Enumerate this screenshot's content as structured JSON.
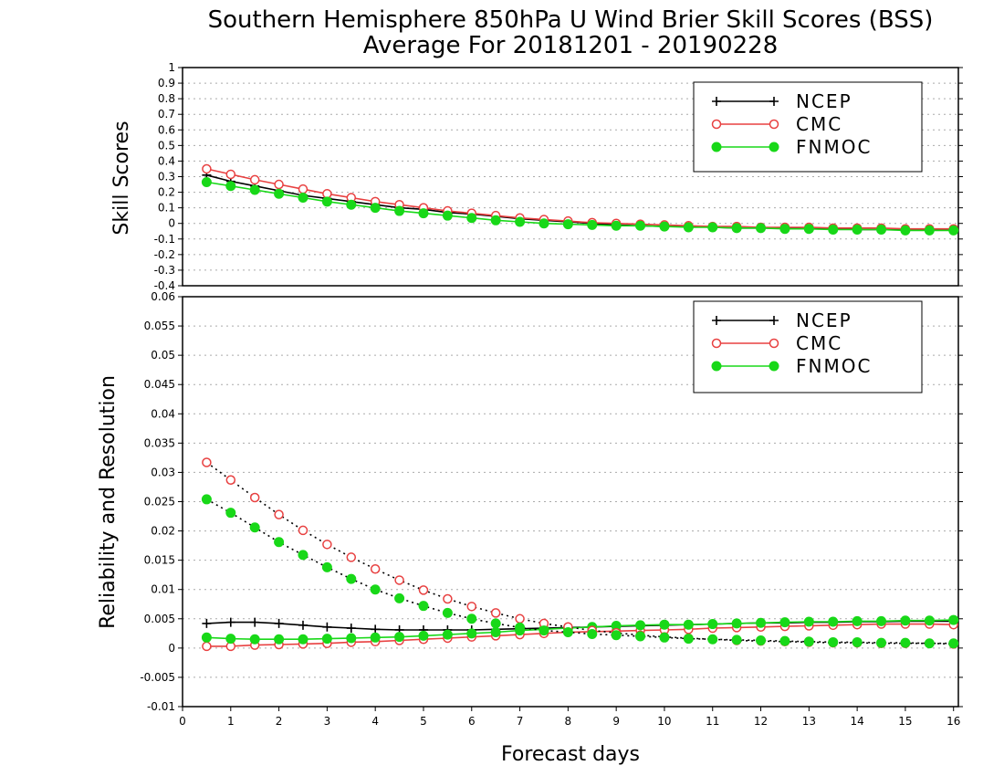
{
  "title_line1": "Southern Hemisphere 850hPa U Wind Brier Skill Scores (BSS)",
  "title_line2": "Average For 20181201 - 20190228",
  "xlabel": "Forecast days",
  "colors": {
    "NCEP": "#000000",
    "CMC": "#e84040",
    "FNMOC": "#18d818",
    "grid": "#aaaaaa"
  },
  "chart_data": [
    {
      "type": "line",
      "ylabel": "Skill Scores",
      "ylim": [
        -0.4,
        1
      ],
      "yticks": [
        -0.4,
        -0.3,
        -0.2,
        -0.1,
        0,
        0.1,
        0.2,
        0.3,
        0.4,
        0.5,
        0.6,
        0.7,
        0.8,
        0.9,
        1
      ],
      "ytick_labels": [
        "-0.4",
        "-0.3",
        "-0.2",
        "-0.1",
        "0",
        "0.1",
        "0.2",
        "0.3",
        "0.4",
        "0.5",
        "0.6",
        "0.7",
        "0.8",
        "0.9",
        "1"
      ],
      "xlim": [
        0,
        16.1
      ],
      "grid": true,
      "legend_position": "top-right",
      "x": [
        0.5,
        1,
        1.5,
        2,
        2.5,
        3,
        3.5,
        4,
        4.5,
        5,
        5.5,
        6,
        6.5,
        7,
        7.5,
        8,
        8.5,
        9,
        9.5,
        10,
        10.5,
        11,
        11.5,
        12,
        12.5,
        13,
        13.5,
        14,
        14.5,
        15,
        15.5,
        16
      ],
      "series": [
        {
          "name": "NCEP",
          "marker": "plus",
          "values": [
            0.31,
            0.27,
            0.24,
            0.21,
            0.18,
            0.16,
            0.14,
            0.12,
            0.1,
            0.09,
            0.07,
            0.06,
            0.045,
            0.03,
            0.02,
            0.01,
            0.0,
            -0.01,
            -0.015,
            -0.02,
            -0.02,
            -0.025,
            -0.03,
            -0.03,
            -0.03,
            -0.035,
            -0.035,
            -0.04,
            -0.04,
            -0.04,
            -0.04,
            -0.04
          ]
        },
        {
          "name": "CMC",
          "marker": "open-circle",
          "values": [
            0.35,
            0.315,
            0.28,
            0.25,
            0.22,
            0.19,
            0.165,
            0.14,
            0.12,
            0.1,
            0.08,
            0.065,
            0.05,
            0.035,
            0.025,
            0.015,
            0.005,
            0.0,
            -0.005,
            -0.01,
            -0.015,
            -0.02,
            -0.02,
            -0.025,
            -0.025,
            -0.025,
            -0.03,
            -0.03,
            -0.03,
            -0.035,
            -0.035,
            -0.035
          ]
        },
        {
          "name": "FNMOC",
          "marker": "filled-circle",
          "values": [
            0.265,
            0.24,
            0.215,
            0.19,
            0.165,
            0.14,
            0.12,
            0.1,
            0.08,
            0.065,
            0.05,
            0.035,
            0.02,
            0.01,
            0.0,
            -0.005,
            -0.01,
            -0.015,
            -0.015,
            -0.02,
            -0.025,
            -0.025,
            -0.03,
            -0.03,
            -0.035,
            -0.035,
            -0.04,
            -0.04,
            -0.04,
            -0.045,
            -0.045,
            -0.045
          ]
        }
      ]
    },
    {
      "type": "line",
      "ylabel": "Reliability and Resolution",
      "ylim": [
        -0.01,
        0.06
      ],
      "yticks": [
        -0.01,
        -0.005,
        0,
        0.005,
        0.01,
        0.015,
        0.02,
        0.025,
        0.03,
        0.035,
        0.04,
        0.045,
        0.05,
        0.055,
        0.06
      ],
      "ytick_labels": [
        "-0.01",
        "-0.005",
        "0",
        "0.005",
        "0.01",
        "0.015",
        "0.02",
        "0.025",
        "0.03",
        "0.035",
        "0.04",
        "0.045",
        "0.05",
        "0.055",
        "0.06"
      ],
      "xlim": [
        0,
        16.1
      ],
      "xticks": [
        0,
        1,
        2,
        3,
        4,
        5,
        6,
        7,
        8,
        9,
        10,
        11,
        12,
        13,
        14,
        15,
        16
      ],
      "xtick_labels": [
        "0",
        "1",
        "2",
        "3",
        "4",
        "5",
        "6",
        "7",
        "8",
        "9",
        "10",
        "11",
        "12",
        "13",
        "14",
        "15",
        "16"
      ],
      "grid": true,
      "legend_position": "top-right",
      "x": [
        0.5,
        1,
        1.5,
        2,
        2.5,
        3,
        3.5,
        4,
        4.5,
        5,
        5.5,
        6,
        6.5,
        7,
        7.5,
        8,
        8.5,
        9,
        9.5,
        10,
        10.5,
        11,
        11.5,
        12,
        12.5,
        13,
        13.5,
        14,
        14.5,
        15,
        15.5,
        16
      ],
      "series": [
        {
          "name": "NCEP",
          "marker": "plus",
          "line": "solid",
          "values": [
            0.0042,
            0.0044,
            0.0044,
            0.0042,
            0.0039,
            0.0036,
            0.0034,
            0.0032,
            0.0031,
            0.0031,
            0.0031,
            0.0031,
            0.0032,
            0.0033,
            0.0034,
            0.0035,
            0.0036,
            0.0037,
            0.0038,
            0.0039,
            0.004,
            0.0041,
            0.0042,
            0.0043,
            0.0043,
            0.0044,
            0.0044,
            0.0045,
            0.0045,
            0.0046,
            0.0046,
            0.0046
          ]
        },
        {
          "name": "CMC",
          "marker": "open-circle",
          "line": "solid",
          "values": [
            0.0003,
            0.0003,
            0.0005,
            0.0006,
            0.0007,
            0.0008,
            0.001,
            0.0011,
            0.0013,
            0.0015,
            0.0017,
            0.0019,
            0.0021,
            0.0023,
            0.0025,
            0.0027,
            0.0028,
            0.0029,
            0.003,
            0.0031,
            0.0032,
            0.0034,
            0.0035,
            0.0036,
            0.0037,
            0.0038,
            0.0039,
            0.004,
            0.0041,
            0.0041,
            0.0041,
            0.004
          ]
        },
        {
          "name": "FNMOC",
          "marker": "filled-circle",
          "line": "solid",
          "values": [
            0.0018,
            0.0016,
            0.0015,
            0.0015,
            0.0015,
            0.0016,
            0.0017,
            0.0018,
            0.0019,
            0.0021,
            0.0023,
            0.0025,
            0.0027,
            0.003,
            0.0032,
            0.0034,
            0.0036,
            0.0038,
            0.0039,
            0.004,
            0.004,
            0.0041,
            0.0042,
            0.0043,
            0.0044,
            0.0045,
            0.0045,
            0.0046,
            0.0046,
            0.0047,
            0.0047,
            0.0048
          ]
        },
        {
          "name": "CMC",
          "marker": "open-circle",
          "line": "dotted",
          "values": [
            0.0317,
            0.0287,
            0.0257,
            0.0228,
            0.0201,
            0.0177,
            0.0155,
            0.0135,
            0.0116,
            0.0099,
            0.0084,
            0.0071,
            0.006,
            0.005,
            0.0042,
            0.0036,
            0.003,
            0.0026,
            0.0022,
            0.0019,
            0.0017,
            0.0015,
            0.0013,
            0.0012,
            0.0011,
            0.001,
            0.0009,
            0.0009,
            0.0008,
            0.0008,
            0.0008,
            0.0007
          ]
        },
        {
          "name": "FNMOC",
          "marker": "filled-circle",
          "line": "dotted",
          "values": [
            0.0254,
            0.0231,
            0.0206,
            0.0181,
            0.0159,
            0.0138,
            0.0118,
            0.01,
            0.0085,
            0.0072,
            0.006,
            0.005,
            0.0042,
            0.0035,
            0.003,
            0.0027,
            0.0024,
            0.0022,
            0.002,
            0.0018,
            0.0016,
            0.0015,
            0.0014,
            0.0013,
            0.0012,
            0.0011,
            0.001,
            0.001,
            0.0009,
            0.0009,
            0.0008,
            0.0008
          ]
        }
      ]
    }
  ]
}
